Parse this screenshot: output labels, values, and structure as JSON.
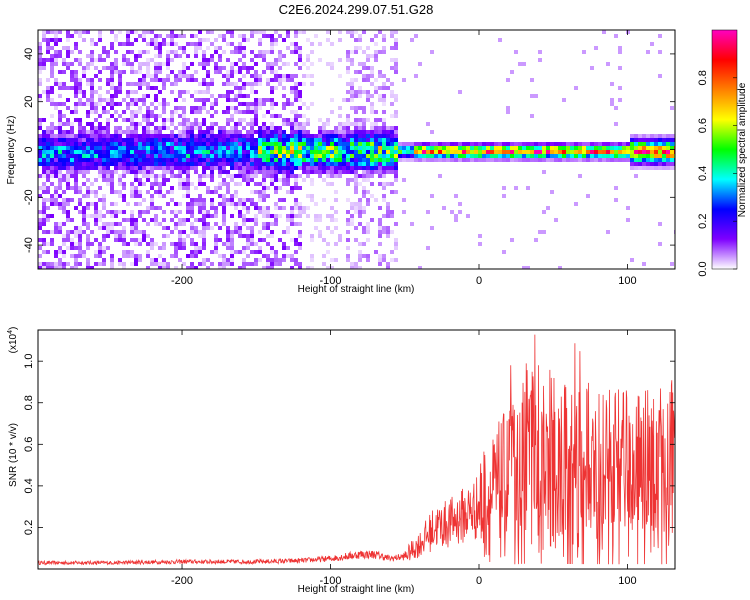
{
  "title": "C2E6.2024.299.07.51.G28",
  "chart_data": [
    {
      "type": "heatmap",
      "xlabel": "Height of straight line (km)",
      "ylabel": "Frequency (Hz)",
      "xlim": [
        -297,
        132
      ],
      "ylim": [
        -50,
        50
      ],
      "xticks": [
        -200,
        -100,
        0,
        100
      ],
      "yticks": [
        -40,
        -20,
        0,
        20,
        40
      ],
      "colorbar": {
        "label": "Normalized spectral amplitude",
        "range": [
          0,
          1
        ],
        "ticks": [
          "0.0",
          "0.2",
          "0.4",
          "0.6",
          "0.8"
        ],
        "tick_values": [
          0.0,
          0.2,
          0.4,
          0.6,
          0.8
        ],
        "colormap": [
          "#ffffff",
          "#7e00ff",
          "#0000ff",
          "#00ffff",
          "#00ff00",
          "#ffff00",
          "#ff8000",
          "#ff0000",
          "#ff00c0"
        ]
      },
      "description_of_regions": [
        {
          "x_range": [
            -297,
            -55
          ],
          "spread_hz": 50,
          "max_amplitude": 0.15
        },
        {
          "x_range": [
            -140,
            -55
          ],
          "spread_hz": 6,
          "max_amplitude": 0.35
        },
        {
          "x_range": [
            -55,
            132
          ],
          "spread_hz": 3,
          "max_amplitude": 0.95
        }
      ]
    },
    {
      "type": "line",
      "xlabel": "Height of straight line (km)",
      "ylabel": "SNR (10 * v/v)",
      "yscale_note": "(x10",
      "yscale_exponent": "4",
      "xlim": [
        -297,
        132
      ],
      "ylim": [
        0,
        1.15
      ],
      "xticks": [
        -200,
        -100,
        0,
        100
      ],
      "yticks": [
        "0.2",
        "0.4",
        "0.6",
        "0.8",
        "1.0"
      ],
      "ytick_values": [
        0.2,
        0.4,
        0.6,
        0.8,
        1.0
      ],
      "series": [
        {
          "color": "#ee3333",
          "x": [
            -297,
            -250,
            -200,
            -150,
            -120,
            -100,
            -90,
            -80,
            -70,
            -60,
            -50,
            -40,
            -30,
            -20,
            -10,
            0,
            10,
            20,
            30,
            40,
            50,
            60,
            70,
            80,
            90,
            100,
            110,
            120,
            132
          ],
          "y": [
            0.03,
            0.03,
            0.035,
            0.035,
            0.04,
            0.05,
            0.06,
            0.07,
            0.07,
            0.05,
            0.06,
            0.12,
            0.2,
            0.22,
            0.26,
            0.3,
            0.35,
            0.42,
            0.5,
            0.52,
            0.5,
            0.48,
            0.47,
            0.47,
            0.46,
            0.46,
            0.47,
            0.45,
            0.5
          ]
        }
      ]
    }
  ]
}
